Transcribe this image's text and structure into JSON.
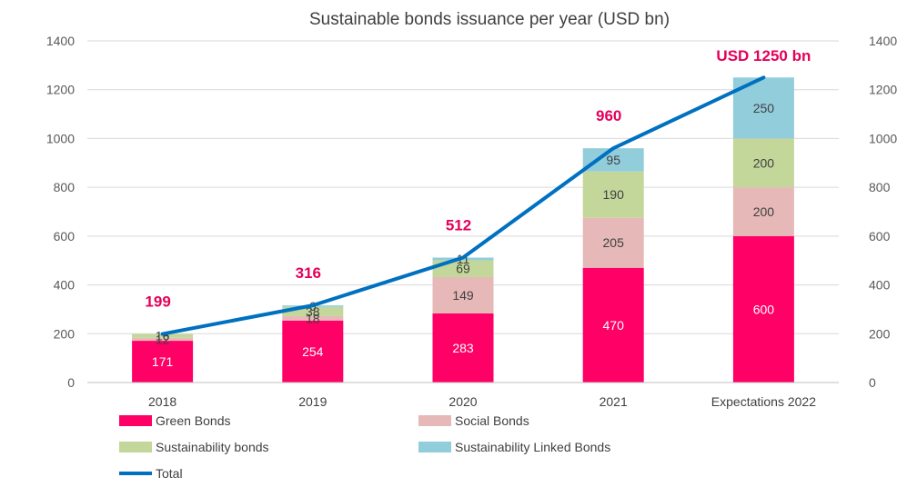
{
  "chart_data": {
    "type": "bar",
    "title": "Sustainable bonds issuance per year (USD bn)",
    "categories": [
      "2018",
      "2019",
      "2020",
      "2021",
      "Expectations 2022"
    ],
    "series": [
      {
        "name": "Green Bonds",
        "color": "#ff0066",
        "label_color": "#ffffff",
        "values": [
          171,
          254,
          283,
          470,
          600
        ]
      },
      {
        "name": "Social Bonds",
        "color": "#e6b8b8",
        "label_color": "#404040",
        "values": [
          12,
          18,
          149,
          205,
          200
        ]
      },
      {
        "name": "Sustainability bonds",
        "color": "#c4d79b",
        "label_color": "#404040",
        "values": [
          16,
          38,
          69,
          190,
          200
        ]
      },
      {
        "name": "Sustainability Linked Bonds",
        "color": "#92cddc",
        "label_color": "#404040",
        "values": [
          0,
          6,
          11,
          95,
          250
        ]
      }
    ],
    "line": {
      "name": "Total",
      "color": "#0070c0",
      "values": [
        199,
        316,
        512,
        960,
        1250
      ]
    },
    "total_labels": [
      "199",
      "316",
      "512",
      "960",
      "USD 1250 bn"
    ],
    "total_label_color": "#e5005a",
    "y_ticks": [
      0,
      200,
      400,
      600,
      800,
      1000,
      1200,
      1400
    ],
    "ylim": [
      0,
      1400
    ],
    "y2lim": [
      0,
      1400
    ],
    "grid": true,
    "legend_position": "bottom"
  }
}
